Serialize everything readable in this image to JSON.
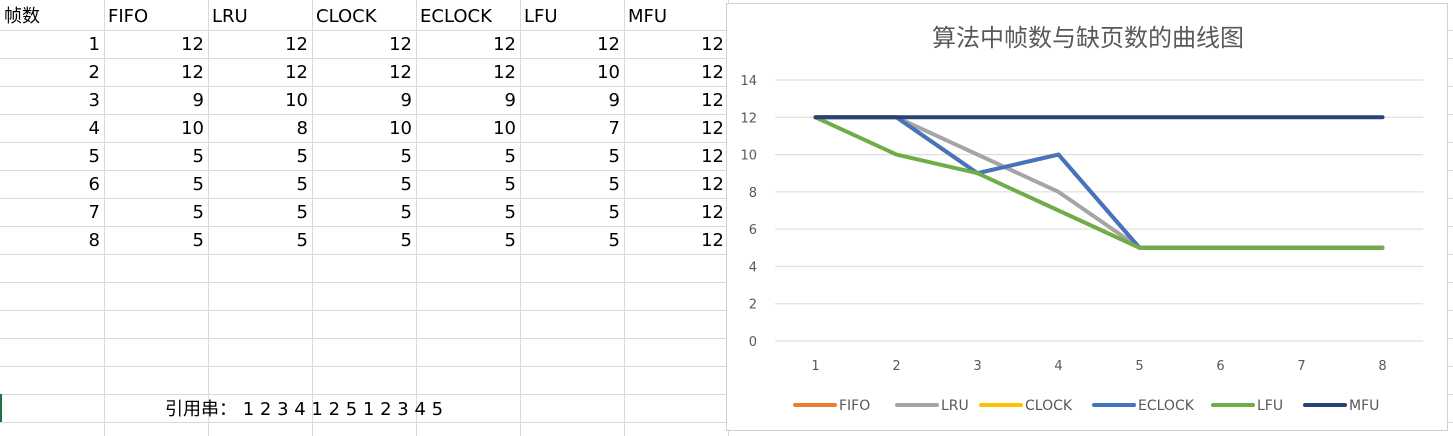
{
  "sheet": {
    "headers": [
      "帧数",
      "FIFO",
      "LRU",
      "CLOCK",
      "ECLOCK",
      "LFU",
      "MFU"
    ],
    "rows": [
      [
        "1",
        "12",
        "12",
        "12",
        "12",
        "12",
        "12"
      ],
      [
        "2",
        "12",
        "12",
        "12",
        "12",
        "10",
        "12"
      ],
      [
        "3",
        "9",
        "10",
        "9",
        "9",
        "9",
        "12"
      ],
      [
        "4",
        "10",
        "8",
        "10",
        "10",
        "7",
        "12"
      ],
      [
        "5",
        "5",
        "5",
        "5",
        "5",
        "5",
        "12"
      ],
      [
        "6",
        "5",
        "5",
        "5",
        "5",
        "5",
        "12"
      ],
      [
        "7",
        "5",
        "5",
        "5",
        "5",
        "5",
        "12"
      ],
      [
        "8",
        "5",
        "5",
        "5",
        "5",
        "5",
        "12"
      ]
    ],
    "reference_string": "引用串：  1 2 3 4 1 2 5 1 2 3 4 5"
  },
  "chart_data": {
    "type": "line",
    "title": "算法中帧数与缺页数的曲线图",
    "xlabel": "",
    "ylabel": "",
    "categories": [
      "1",
      "2",
      "3",
      "4",
      "5",
      "6",
      "7",
      "8"
    ],
    "ylim": [
      0,
      14
    ],
    "yticks": [
      "0",
      "2",
      "4",
      "6",
      "8",
      "10",
      "12",
      "14"
    ],
    "grid": true,
    "legend_position": "bottom",
    "series": [
      {
        "name": "FIFO",
        "color": "#ED7D31",
        "values": [
          12,
          12,
          9,
          10,
          5,
          5,
          5,
          5
        ]
      },
      {
        "name": "LRU",
        "color": "#A5A5A5",
        "values": [
          12,
          12,
          10,
          8,
          5,
          5,
          5,
          5
        ]
      },
      {
        "name": "CLOCK",
        "color": "#FFC000",
        "values": [
          12,
          12,
          9,
          10,
          5,
          5,
          5,
          5
        ]
      },
      {
        "name": "ECLOCK",
        "color": "#4472C4",
        "values": [
          12,
          12,
          9,
          10,
          5,
          5,
          5,
          5
        ]
      },
      {
        "name": "LFU",
        "color": "#70AD47",
        "values": [
          12,
          10,
          9,
          7,
          5,
          5,
          5,
          5
        ]
      },
      {
        "name": "MFU",
        "color": "#264478",
        "values": [
          12,
          12,
          12,
          12,
          12,
          12,
          12,
          12
        ]
      }
    ]
  }
}
